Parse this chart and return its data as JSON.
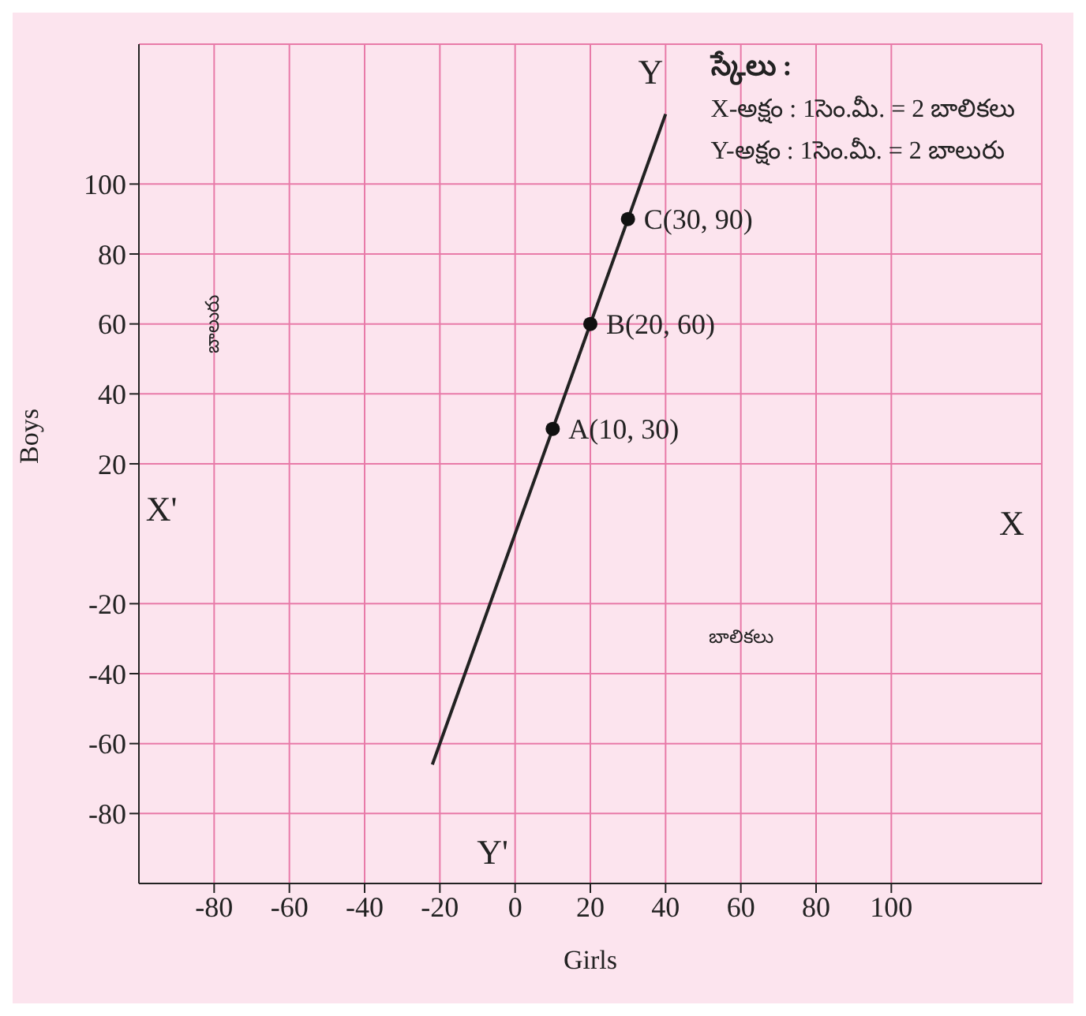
{
  "chart_data": {
    "type": "line",
    "xlabel": "Girls",
    "ylabel": "Boys",
    "annotations": [
      "స్కేలు :",
      "X-అక్షం : 1సెం.మీ. = 2 బాలికలు",
      "Y-అక్షం : 1సెం.మీ. = 2 బాలురు",
      "X",
      "X'",
      "Y",
      "Y'",
      "బాలురు",
      "బాలికలు",
      {
        "text": "A(10, 30)",
        "x": 10,
        "y": 30
      },
      {
        "text": "B(20, 60)",
        "x": 20,
        "y": 60
      },
      {
        "text": "C(30, 90)",
        "x": 30,
        "y": 90
      }
    ],
    "series": [
      {
        "color": "#222222",
        "x": [
          -22,
          40
        ],
        "values": [
          -66,
          120
        ],
        "marker": "none"
      },
      {
        "type": "scatter",
        "color": "#111111",
        "x": [
          10,
          20,
          30
        ],
        "values": [
          30,
          60,
          90
        ],
        "marker": "circle"
      }
    ],
    "xlim": [
      -100,
      140
    ],
    "ylim": [
      -100,
      140
    ],
    "xticks": [
      -80,
      -60,
      -40,
      -20,
      0,
      20,
      40,
      60,
      80,
      100
    ],
    "yticks": [
      -80,
      -60,
      -40,
      -20,
      20,
      40,
      60,
      80,
      100
    ],
    "grid": true
  }
}
